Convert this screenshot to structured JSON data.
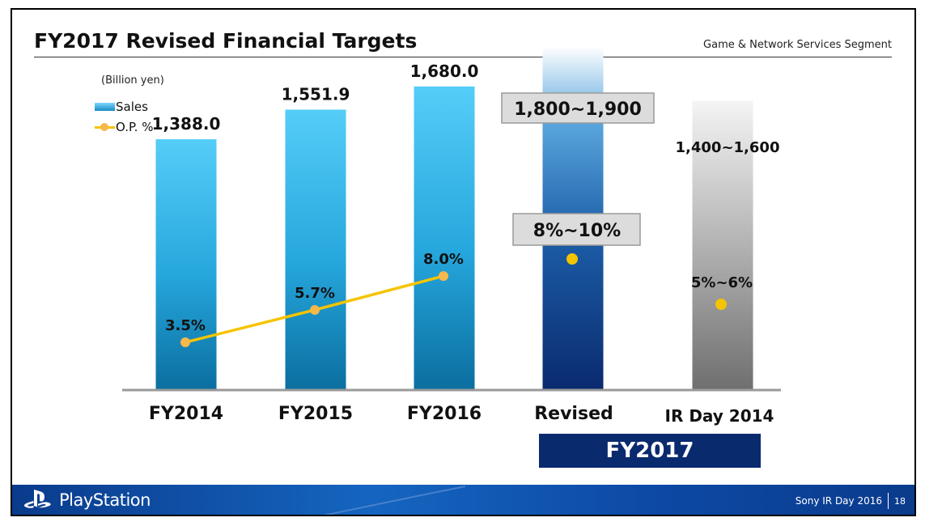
{
  "slide": {
    "title": "FY2017 Revised Financial Targets",
    "segment": "Game & Network Services Segment",
    "unit": "(Billion yen)"
  },
  "legend": {
    "sales": "Sales",
    "op": "O.P. %"
  },
  "fy_banner": "FY2017",
  "footer": {
    "brand": "PlayStation",
    "event": "Sony IR Day 2016",
    "page": "18"
  },
  "colors": {
    "bar_blue_top": "#4fc9f7",
    "bar_blue_bottom": "#0b6e9f",
    "revised_navy": "#0a2a6e",
    "ir_gray": "#7a7a7a",
    "op_line": "#f5c400",
    "op_dot": "#f7b84a",
    "footer": "#0d4aa6"
  },
  "chart_data": {
    "type": "bar",
    "categories": [
      "FY2014",
      "FY2015",
      "FY2016",
      "Revised",
      "IR Day 2014"
    ],
    "sales": {
      "name": "Sales",
      "values": [
        1388.0,
        1551.9,
        1680.0,
        1900,
        1600
      ],
      "labels": [
        "1,388.0",
        "1,551.9",
        "1,680.0",
        "1,800~1,900",
        "1,400~1,600"
      ]
    },
    "op_percent": {
      "name": "O.P. %",
      "values": [
        3.5,
        5.7,
        8.0,
        9,
        5.5
      ],
      "labels": [
        "3.5%",
        "5.7%",
        "8.0%",
        "8%~10%",
        "5%~6%"
      ]
    },
    "ylim": [
      0,
      1950
    ],
    "title": "",
    "xlabel": "",
    "ylabel": ""
  }
}
